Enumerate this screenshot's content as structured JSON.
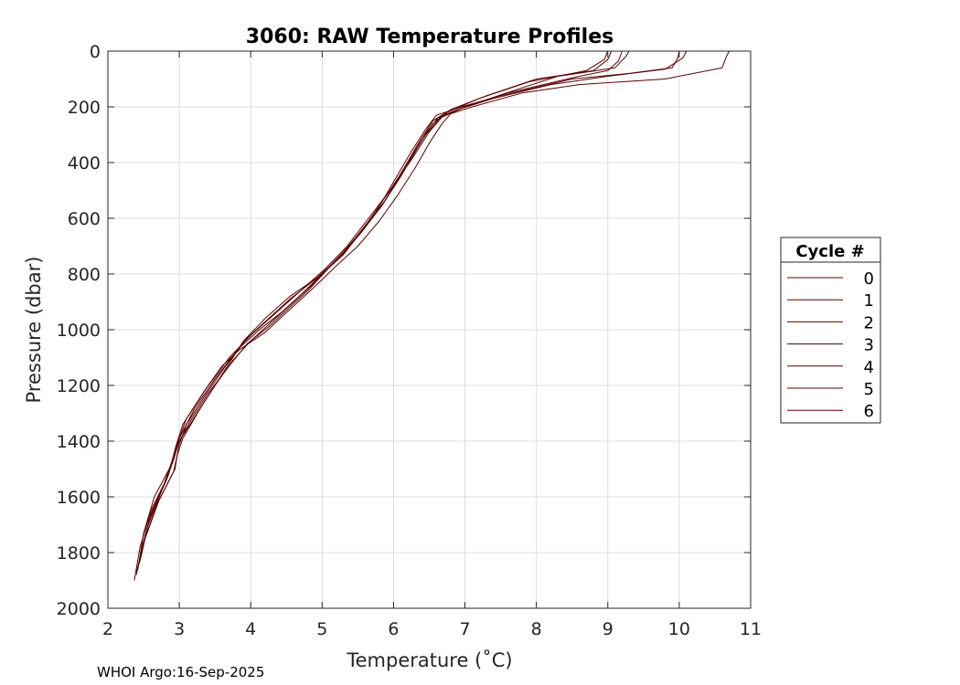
{
  "chart_data": {
    "type": "line",
    "title": "3060: RAW Temperature Profiles",
    "xlabel": "Temperature (˚C)",
    "ylabel": "Pressure (dbar)",
    "xlim": [
      2,
      11
    ],
    "ylim": [
      0,
      2000
    ],
    "y_reversed": true,
    "grid": true,
    "xticks": [
      2,
      3,
      4,
      5,
      6,
      7,
      8,
      9,
      10,
      11
    ],
    "yticks": [
      0,
      200,
      400,
      600,
      800,
      1000,
      1200,
      1400,
      1600,
      1800,
      2000
    ],
    "legend": {
      "title": "Cycle #",
      "placement": "outside-right"
    },
    "series_color": "#5a0000",
    "series": [
      {
        "name": "0",
        "x": [
          10.7,
          10.66,
          10.6,
          9.8,
          8.6,
          7.8,
          7.1,
          6.8,
          6.68,
          6.5,
          6.3,
          6.05,
          5.8,
          5.5,
          5.2,
          5.0,
          4.75,
          4.45,
          4.2,
          3.85,
          3.6,
          3.35,
          3.05,
          2.95,
          2.85,
          2.6,
          2.45,
          2.37
        ],
        "y": [
          0,
          20,
          60,
          100,
          120,
          150,
          200,
          225,
          260,
          330,
          420,
          520,
          610,
          700,
          770,
          820,
          880,
          950,
          1010,
          1070,
          1130,
          1220,
          1340,
          1420,
          1520,
          1650,
          1780,
          1900
        ]
      },
      {
        "name": "1",
        "x": [
          10.0,
          9.98,
          9.9,
          9.3,
          8.5,
          7.5,
          6.95,
          6.6,
          6.45,
          6.25,
          6.0,
          5.75,
          5.45,
          5.15,
          4.9,
          4.6,
          4.3,
          4.0,
          3.75,
          3.5,
          3.25,
          3.0,
          2.9,
          2.82,
          2.6,
          2.48,
          2.4
        ],
        "y": [
          0,
          25,
          60,
          80,
          100,
          160,
          200,
          230,
          280,
          360,
          470,
          580,
          680,
          760,
          830,
          900,
          970,
          1040,
          1110,
          1200,
          1300,
          1400,
          1480,
          1540,
          1660,
          1780,
          1880
        ]
      },
      {
        "name": "2",
        "x": [
          9.3,
          9.25,
          9.1,
          8.3,
          7.7,
          7.0,
          6.65,
          6.45,
          6.2,
          5.95,
          5.65,
          5.35,
          5.05,
          4.8,
          4.5,
          4.25,
          3.95,
          3.7,
          3.4,
          3.15,
          2.98,
          2.9,
          2.75,
          2.55,
          2.44
        ],
        "y": [
          0,
          20,
          60,
          90,
          140,
          200,
          240,
          300,
          400,
          500,
          610,
          710,
          790,
          860,
          930,
          990,
          1050,
          1130,
          1230,
          1330,
          1410,
          1470,
          1580,
          1710,
          1840
        ]
      },
      {
        "name": "3",
        "x": [
          9.05,
          9.0,
          8.8,
          8.0,
          7.3,
          6.8,
          6.55,
          6.35,
          6.1,
          5.85,
          5.55,
          5.25,
          4.95,
          4.55,
          4.2,
          3.9,
          3.6,
          3.3,
          3.05,
          2.97,
          2.92,
          2.7,
          2.5
        ],
        "y": [
          0,
          30,
          70,
          100,
          160,
          210,
          250,
          330,
          440,
          550,
          650,
          740,
          810,
          880,
          960,
          1040,
          1160,
          1280,
          1390,
          1450,
          1510,
          1620,
          1760
        ]
      },
      {
        "name": "4",
        "x": [
          9.2,
          9.15,
          9.0,
          8.6,
          8.1,
          7.6,
          7.0,
          6.7,
          6.5,
          6.25,
          5.95,
          5.65,
          5.35,
          5.05,
          4.7,
          4.35,
          4.0,
          3.7,
          3.38,
          3.1,
          2.97,
          2.88,
          2.65,
          2.5,
          2.42
        ],
        "y": [
          0,
          35,
          70,
          90,
          120,
          150,
          200,
          230,
          290,
          390,
          500,
          600,
          700,
          780,
          860,
          940,
          1020,
          1100,
          1210,
          1320,
          1410,
          1490,
          1600,
          1730,
          1860
        ]
      },
      {
        "name": "5",
        "x": [
          10.1,
          10.05,
          9.8,
          9.0,
          8.2,
          7.4,
          6.9,
          6.62,
          6.4,
          6.15,
          5.9,
          5.6,
          5.3,
          5.0,
          4.72,
          4.42,
          4.12,
          3.82,
          3.52,
          3.22,
          3.0,
          2.93,
          2.8,
          2.58,
          2.46
        ],
        "y": [
          0,
          25,
          65,
          90,
          120,
          170,
          210,
          240,
          310,
          420,
          530,
          630,
          730,
          800,
          870,
          940,
          1000,
          1070,
          1170,
          1280,
          1390,
          1460,
          1550,
          1680,
          1820
        ]
      },
      {
        "name": "6",
        "x": [
          9.0,
          8.95,
          8.7,
          7.9,
          7.2,
          6.75,
          6.55,
          6.35,
          6.1,
          5.82,
          5.5,
          5.2,
          4.9,
          4.55,
          4.25,
          3.95,
          3.65,
          3.35,
          3.1,
          2.99,
          2.94,
          2.72,
          2.52,
          2.4
        ],
        "y": [
          0,
          30,
          70,
          110,
          170,
          220,
          260,
          340,
          450,
          560,
          660,
          750,
          820,
          890,
          960,
          1030,
          1130,
          1240,
          1340,
          1420,
          1500,
          1610,
          1750,
          1870
        ]
      }
    ]
  },
  "footer": {
    "credit": "WHOI Argo:16-Sep-2025"
  }
}
